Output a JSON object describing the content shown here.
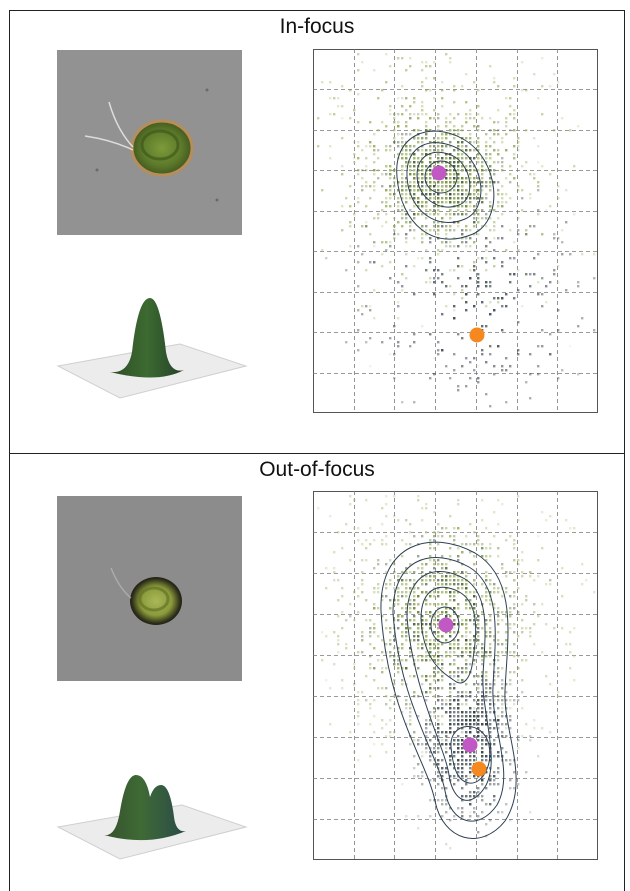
{
  "panels": [
    {
      "title": "In-focus"
    },
    {
      "title": "Out-of-focus"
    }
  ],
  "colors": {
    "frame": "#222222",
    "grid": "#7a7a7a",
    "contour": "#2e3f52",
    "mean_marker": "#c159c5",
    "reference_marker": "#f5891f",
    "photo_background": "#8e8e8e",
    "cell_green": "#5f7a2c"
  },
  "icons": [
    "cell-photo",
    "surface-plot",
    "scatter-density-plot"
  ]
}
